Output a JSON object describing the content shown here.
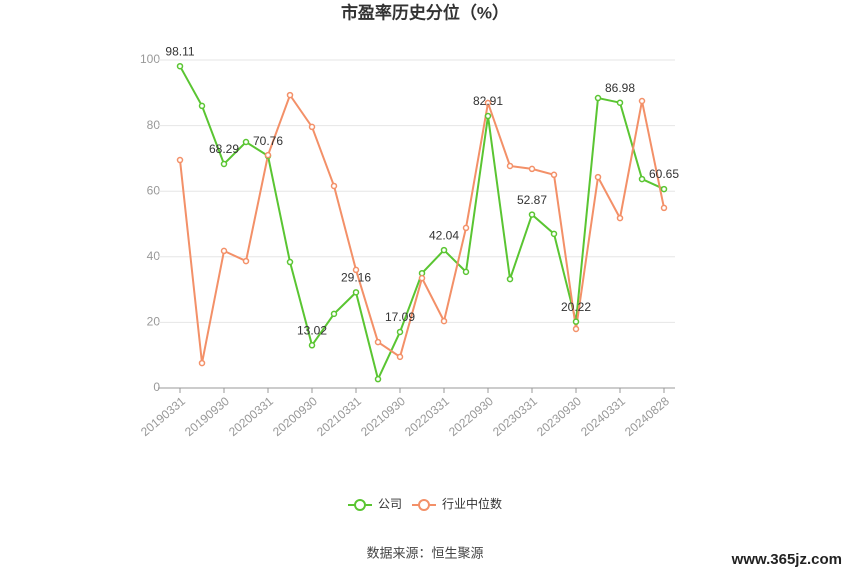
{
  "chart_data": {
    "type": "line",
    "title": "市盈率历史分位（%）",
    "categories": [
      "20190331",
      null,
      "20190930",
      null,
      "20200331",
      null,
      "20200930",
      null,
      "20210331",
      null,
      "20210930",
      null,
      "20220331",
      null,
      "20220930",
      null,
      "20230331",
      null,
      "20230930",
      null,
      "20240331",
      null,
      "20240828"
    ],
    "series": [
      {
        "name": "公司",
        "color": "#5ac532",
        "values": [
          98.11,
          86,
          68.29,
          75,
          70.76,
          38.4,
          13.02,
          22.6,
          29.16,
          2.7,
          17.09,
          35,
          42.04,
          35.4,
          82.91,
          33.2,
          52.87,
          47,
          20.22,
          88.4,
          86.98,
          63.7,
          60.65
        ]
      },
      {
        "name": "行业中位数",
        "color": "#f39068",
        "values": [
          69.5,
          7.6,
          41.8,
          38.7,
          71,
          89.3,
          79.6,
          61.6,
          36,
          14,
          9.5,
          33.5,
          20.4,
          48.8,
          86.9,
          67.7,
          66.8,
          65,
          18,
          64.3,
          51.8,
          87.5,
          54.9
        ]
      }
    ],
    "ylim": [
      0,
      100
    ],
    "yticks": [
      0,
      20,
      40,
      60,
      80,
      100
    ],
    "grid": true,
    "legend": "bottom",
    "source": "数据来源：恒生聚源",
    "watermark": "www.365jz.com"
  }
}
